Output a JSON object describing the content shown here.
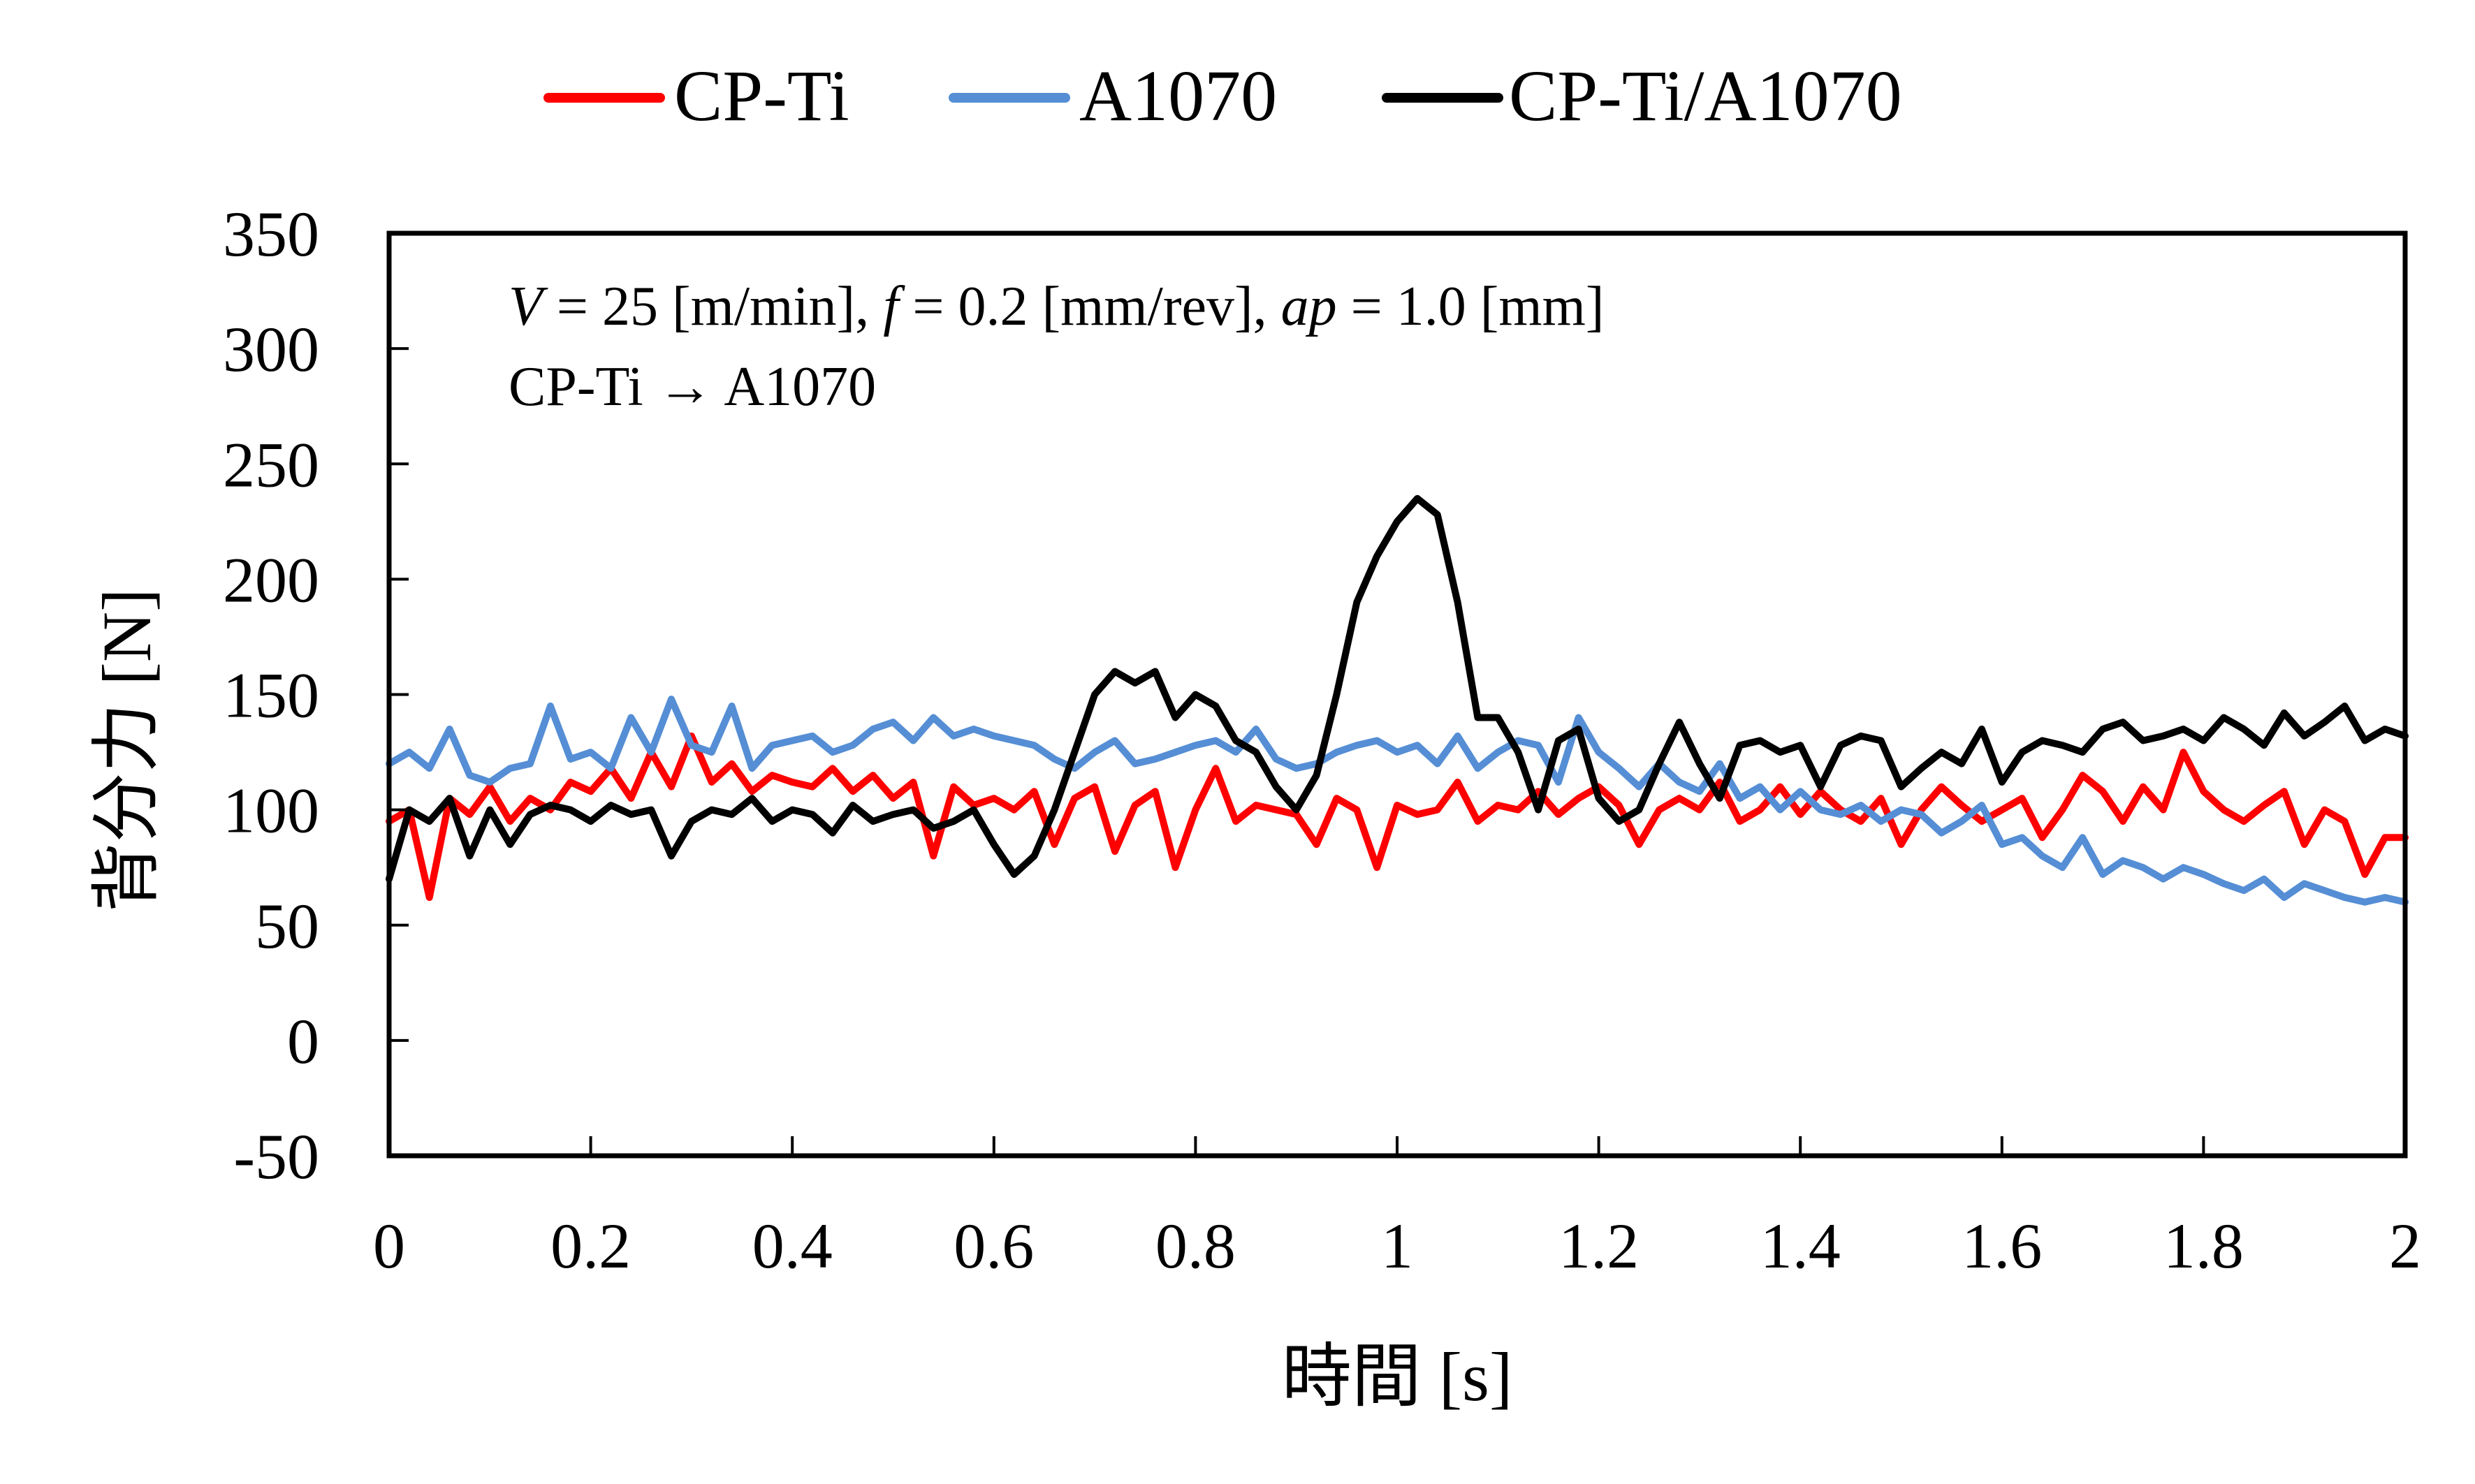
{
  "chart_data": {
    "type": "line",
    "title": "",
    "xlabel": "時間 [s]",
    "ylabel": "背分力 [N]",
    "xlim": [
      0,
      2
    ],
    "ylim": [
      -50,
      350
    ],
    "xticks": [
      0,
      0.2,
      0.4,
      0.6,
      0.8,
      1,
      1.2,
      1.4,
      1.6,
      1.8,
      2
    ],
    "xtick_labels": [
      "0",
      "0.2",
      "0.4",
      "0.6",
      "0.8",
      "1",
      "1.2",
      "1.4",
      "1.6",
      "1.8",
      "2"
    ],
    "yticks": [
      -50,
      0,
      50,
      100,
      150,
      200,
      250,
      300,
      350
    ],
    "ytick_labels": [
      "-50",
      "0",
      "50",
      "100",
      "150",
      "200",
      "250",
      "300",
      "350"
    ],
    "grid": false,
    "legend_position": "top-center",
    "annotations": [
      {
        "parts": [
          {
            "text": "V",
            "italic": true
          },
          {
            "text": " = 25 [m/min], ",
            "italic": false
          },
          {
            "text": "f",
            "italic": true
          },
          {
            "text": " = 0.2 [mm/rev], ",
            "italic": false
          },
          {
            "text": "ap",
            "italic": true
          },
          {
            "text": " = 1.0 [mm]",
            "italic": false
          }
        ]
      },
      {
        "parts": [
          {
            "text": "CP-Ti → A1070",
            "italic": false
          }
        ]
      }
    ],
    "x": [
      0,
      0.02,
      0.04,
      0.06,
      0.08,
      0.1,
      0.12,
      0.14,
      0.16,
      0.18,
      0.2,
      0.22,
      0.24,
      0.26,
      0.28,
      0.3,
      0.32,
      0.34,
      0.36,
      0.38,
      0.4,
      0.42,
      0.44,
      0.46,
      0.48,
      0.5,
      0.52,
      0.54,
      0.56,
      0.58,
      0.6,
      0.62,
      0.64,
      0.66,
      0.68,
      0.7,
      0.72,
      0.74,
      0.76,
      0.78,
      0.8,
      0.82,
      0.84,
      0.86,
      0.88,
      0.9,
      0.92,
      0.94,
      0.96,
      0.98,
      1,
      1.02,
      1.04,
      1.06,
      1.08,
      1.1,
      1.12,
      1.14,
      1.16,
      1.18,
      1.2,
      1.22,
      1.24,
      1.26,
      1.28,
      1.3,
      1.32,
      1.34,
      1.36,
      1.38,
      1.4,
      1.42,
      1.44,
      1.46,
      1.48,
      1.5,
      1.52,
      1.54,
      1.56,
      1.58,
      1.6,
      1.62,
      1.64,
      1.66,
      1.68,
      1.7,
      1.72,
      1.74,
      1.76,
      1.78,
      1.8,
      1.82,
      1.84,
      1.86,
      1.88,
      1.9,
      1.92,
      1.94,
      1.96,
      1.98,
      2
    ],
    "series": [
      {
        "name": "CP-Ti",
        "color": "#ff0000",
        "values": [
          95,
          100,
          62,
          105,
          98,
          110,
          95,
          105,
          100,
          112,
          108,
          118,
          105,
          125,
          110,
          132,
          112,
          120,
          108,
          115,
          112,
          110,
          118,
          108,
          115,
          105,
          112,
          80,
          110,
          102,
          105,
          100,
          108,
          85,
          105,
          110,
          82,
          102,
          108,
          75,
          100,
          118,
          95,
          102,
          100,
          98,
          85,
          105,
          100,
          75,
          102,
          98,
          100,
          112,
          95,
          102,
          100,
          108,
          98,
          105,
          110,
          102,
          85,
          100,
          105,
          100,
          112,
          95,
          100,
          110,
          98,
          108,
          100,
          95,
          105,
          85,
          100,
          110,
          102,
          95,
          100,
          105,
          88,
          100,
          115,
          108,
          95,
          110,
          100,
          125,
          108,
          100,
          95,
          102,
          108,
          85,
          100,
          95,
          72,
          88,
          88
        ]
      },
      {
        "name": "A1070",
        "color": "#558ed5",
        "values": [
          120,
          125,
          118,
          135,
          115,
          112,
          118,
          120,
          145,
          122,
          125,
          118,
          140,
          125,
          148,
          128,
          125,
          145,
          118,
          128,
          130,
          132,
          125,
          128,
          135,
          138,
          130,
          140,
          132,
          135,
          132,
          130,
          128,
          122,
          118,
          125,
          130,
          120,
          122,
          125,
          128,
          130,
          125,
          135,
          122,
          118,
          120,
          125,
          128,
          130,
          125,
          128,
          120,
          132,
          118,
          125,
          130,
          128,
          112,
          140,
          125,
          118,
          110,
          120,
          112,
          108,
          120,
          105,
          110,
          100,
          108,
          100,
          98,
          102,
          95,
          100,
          98,
          90,
          95,
          102,
          85,
          88,
          80,
          75,
          88,
          72,
          78,
          75,
          70,
          75,
          72,
          68,
          65,
          70,
          62,
          68,
          65,
          62,
          60,
          62,
          60
        ]
      },
      {
        "name": "CP-Ti/A1070",
        "color": "#000000",
        "values": [
          70,
          100,
          95,
          105,
          80,
          100,
          85,
          98,
          102,
          100,
          95,
          102,
          98,
          100,
          80,
          95,
          100,
          98,
          105,
          95,
          100,
          98,
          90,
          102,
          95,
          98,
          100,
          92,
          95,
          100,
          85,
          72,
          80,
          100,
          125,
          150,
          160,
          155,
          160,
          140,
          150,
          145,
          130,
          125,
          110,
          100,
          115,
          150,
          190,
          210,
          225,
          235,
          228,
          190,
          140,
          140,
          125,
          100,
          130,
          135,
          105,
          95,
          100,
          120,
          138,
          120,
          105,
          128,
          130,
          125,
          128,
          110,
          128,
          132,
          130,
          110,
          118,
          125,
          120,
          135,
          112,
          125,
          130,
          128,
          125,
          135,
          138,
          130,
          132,
          135,
          130,
          140,
          135,
          128,
          142,
          132,
          138,
          145,
          130,
          135,
          132
        ]
      }
    ]
  },
  "legend": {
    "items": [
      {
        "label": "CP-Ti",
        "color": "#ff0000"
      },
      {
        "label": "A1070",
        "color": "#558ed5"
      },
      {
        "label": "CP-Ti/A1070",
        "color": "#000000"
      }
    ]
  }
}
